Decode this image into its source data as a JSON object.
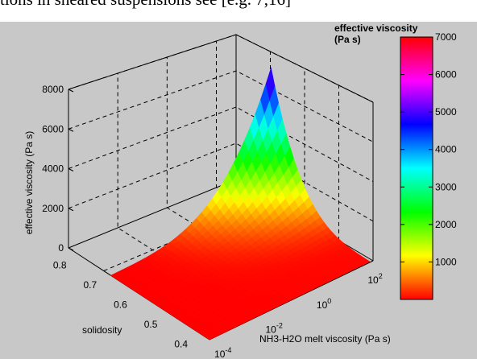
{
  "header_text": "tions in sheared suspensions see [e.g. 7,16]",
  "chart_data": {
    "type": "surface",
    "title": "",
    "zlabel": "effective viscosity (Pa s)",
    "ylabel": "solidosity",
    "xlabel": "NH3-H2O melt viscosity (Pa s)",
    "zlim": [
      0,
      8000
    ],
    "z_ticks": [
      "0",
      "2000",
      "4000",
      "6000",
      "8000"
    ],
    "y_ticks": [
      "0.4",
      "0.5",
      "0.6",
      "0.7",
      "0.8"
    ],
    "x_ticks": [
      {
        "base": "10",
        "exp": "-4"
      },
      {
        "base": "10",
        "exp": "-2"
      },
      {
        "base": "10",
        "exp": "0"
      },
      {
        "base": "10",
        "exp": "2"
      }
    ],
    "grid": true,
    "colormap": "hsv",
    "colorbar": {
      "title": "effective viscosity (Pa s)",
      "title_line1": "effective viscosity",
      "title_line2": "(Pa s)",
      "ticks": [
        "1000",
        "2000",
        "3000",
        "4000",
        "5000",
        "6000",
        "7000"
      ],
      "range": [
        0,
        7000
      ]
    },
    "peak_value": 7000,
    "peak_location": {
      "melt_viscosity": 100,
      "solidosity": 0.8
    }
  }
}
